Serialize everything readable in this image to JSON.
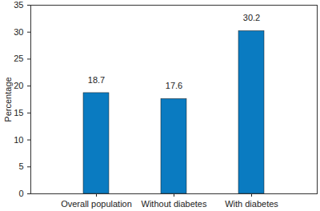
{
  "chart_data": {
    "type": "bar",
    "categories": [
      "Overall population",
      "Without diabetes",
      "With diabetes"
    ],
    "values": [
      18.7,
      17.6,
      30.2
    ],
    "color": "#0a7bc1",
    "y_label": "Percentage",
    "ylim": [
      0,
      35
    ],
    "yticks": [
      0,
      5,
      10,
      15,
      20,
      25,
      30,
      35
    ],
    "grid": false,
    "data_labels": true
  }
}
